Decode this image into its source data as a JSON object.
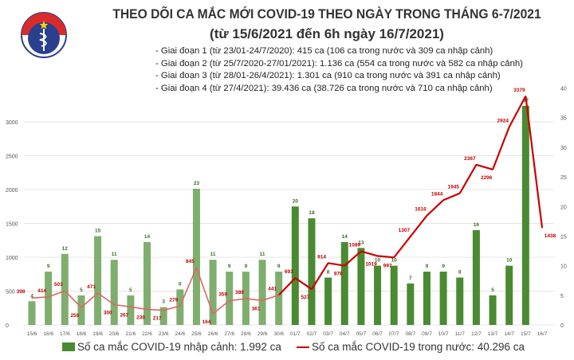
{
  "header": {
    "logo_text": "BỘ Y TẾ · MINISTRY OF HEALTH",
    "title": "THEO DÕI CA MẮC MỚI COVID-19 THEO NGÀY TRONG THÁNG 6-7/2021",
    "subtitle": "(từ 15/6/2021 đến 6h ngày 16/7/2021)",
    "phases": [
      "- Giai đoạn 1 (từ 23/01-24/7/2020): 415 ca (106 ca trong nước và 309 ca nhập cảnh)",
      "- Giai đoạn 2 (từ 25/7/2020-27/01/2021): 1.136 ca (554 ca trong nước và 582 ca nhập cảnh)",
      "- Giai đoạn 3 (từ 28/01-26/4/2021): 1.301 ca (910 ca trong nước và 391 ca nhập cảnh)",
      "- Giai đoạn 4 (từ 27/4/2021): 39.436 ca (38.726 ca trong nước và 710 ca nhập cảnh)"
    ]
  },
  "chart_data": {
    "type": "bar+line",
    "categories": [
      "15/6",
      "16/6",
      "17/6",
      "18/6",
      "19/6",
      "20/6",
      "21/6",
      "22/6",
      "23/6",
      "24/6",
      "25/6",
      "26/6",
      "27/6",
      "28/6",
      "29/6",
      "30/6",
      "01/7",
      "02/7",
      "03/7",
      "04/7",
      "05/7",
      "06/7",
      "07/7",
      "08/7",
      "09/7",
      "10/7",
      "11/7",
      "12/7",
      "13/7",
      "14/7",
      "15/7",
      "16/7"
    ],
    "series": [
      {
        "name": "Số ca mắc COVID-19 nhập cảnh: 1.992 ca",
        "type": "bar",
        "axis": "right",
        "values": [
          4,
          9,
          12,
          5,
          15,
          11,
          5,
          14,
          3,
          6,
          23,
          11,
          9,
          9,
          11,
          9,
          20,
          18,
          8,
          14,
          13,
          10,
          10,
          7,
          9,
          9,
          8,
          16,
          5,
          10,
          37,
          null
        ]
      },
      {
        "name": "Số ca mắc COVID-19 trong nước: 40.296 ca",
        "type": "line",
        "axis": "left",
        "values": [
          398,
          414,
          503,
          259,
          471,
          300,
          267,
          230,
          217,
          279,
          845,
          164,
          359,
          389,
          361,
          441,
          693,
          527,
          914,
          876,
          1089,
          1019,
          997,
          1307,
          1616,
          1844,
          1945,
          2367,
          2296,
          2924,
          3379,
          1438
        ]
      }
    ],
    "left_axis": {
      "ylim": [
        0,
        3500
      ],
      "ticks": [
        0,
        500,
        1000,
        1500,
        2000,
        2500,
        3000
      ]
    },
    "right_axis": {
      "ylim": [
        0,
        40
      ],
      "ticks": [
        0,
        5,
        10,
        15,
        20,
        25,
        30,
        35,
        40
      ]
    },
    "grid": true,
    "legend_placement": "bottom",
    "colors": {
      "bar_early": "#7fae6e",
      "bar_late": "#4a8a32",
      "line_early": "#e06666",
      "line_late": "#cc0000",
      "bar_label": "#3d6b2a",
      "line_label": "#c00000"
    }
  },
  "legend": {
    "bar_label": "Số ca mắc COVID-19 nhập cảnh: 1.992 ca",
    "line_label": "Số ca mắc COVID-19 trong nước: 40.296 ca"
  }
}
